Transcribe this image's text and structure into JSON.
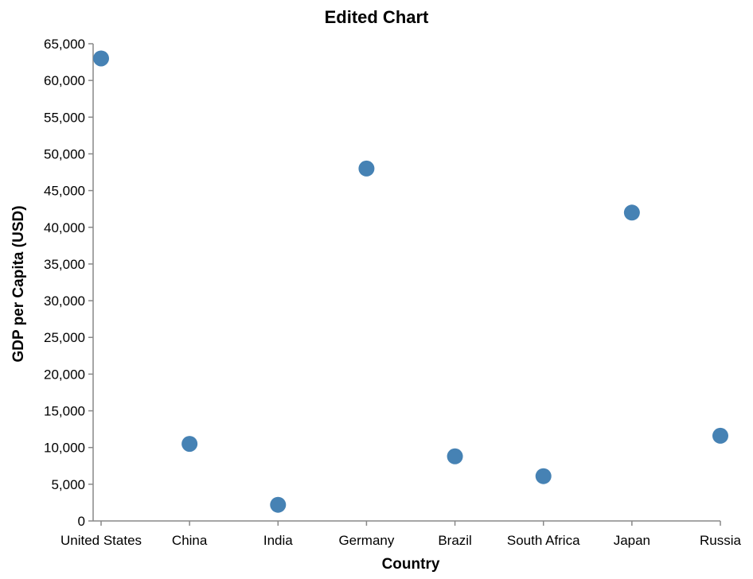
{
  "chart_data": {
    "type": "scatter",
    "title": "Edited Chart",
    "xlabel": "Country",
    "ylabel": "GDP per Capita (USD)",
    "categories": [
      "United States",
      "China",
      "India",
      "Germany",
      "Brazil",
      "South Africa",
      "Japan",
      "Russia"
    ],
    "values": [
      63000,
      10500,
      2200,
      48000,
      8800,
      6100,
      42000,
      11600
    ],
    "ylim": [
      0,
      65000
    ],
    "y_ticks": [
      0,
      5000,
      10000,
      15000,
      20000,
      25000,
      30000,
      35000,
      40000,
      45000,
      50000,
      55000,
      60000,
      65000
    ],
    "y_tick_labels": [
      "0",
      "5,000",
      "10,000",
      "15,000",
      "20,000",
      "25,000",
      "30,000",
      "35,000",
      "40,000",
      "45,000",
      "50,000",
      "55,000",
      "60,000",
      "65,000"
    ],
    "grid": false,
    "legend": "none",
    "point_color": "#4682b4"
  }
}
